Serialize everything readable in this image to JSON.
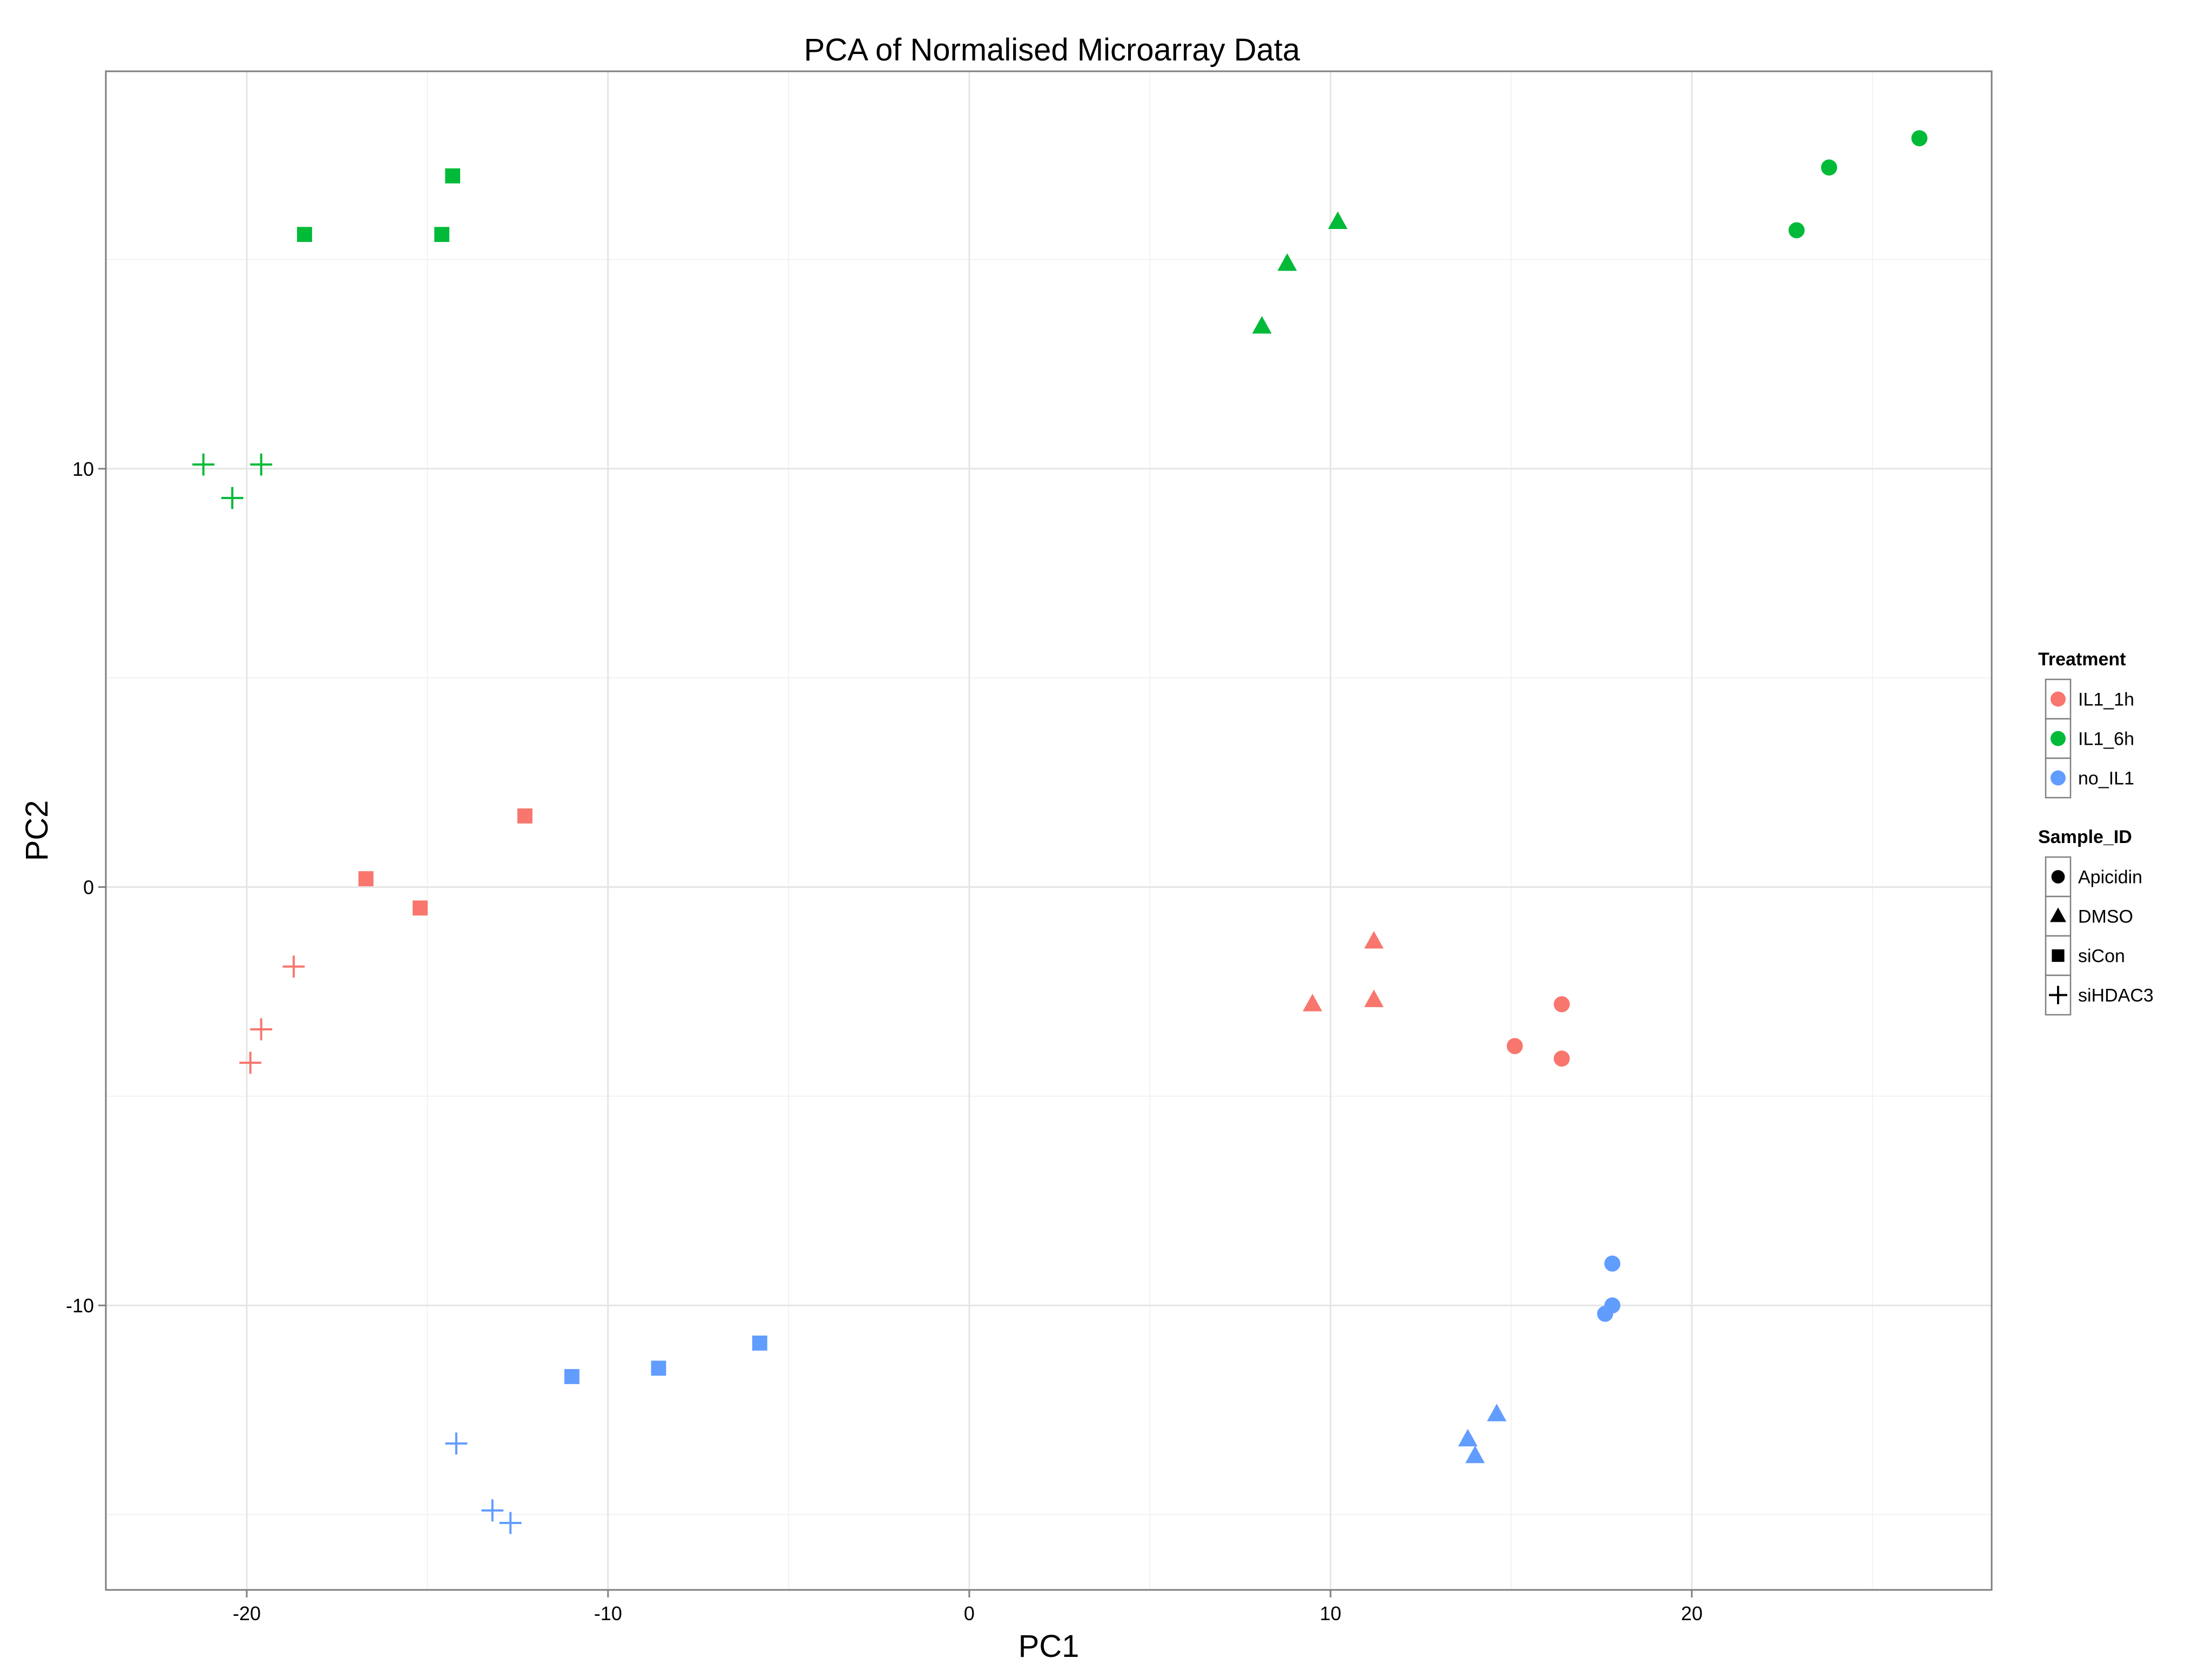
{
  "chart_data": {
    "type": "scatter",
    "title": "PCA of Normalised Microarray Data",
    "xlabel": "PC1",
    "ylabel": "PC2",
    "xlim": [
      -23.9,
      28.3
    ],
    "ylim": [
      -16.8,
      19.5
    ],
    "x_ticks": [
      -20,
      -10,
      0,
      10,
      20
    ],
    "x_tick_labels": [
      "-20",
      "-10",
      "0",
      "10",
      "20"
    ],
    "y_ticks": [
      -10,
      0,
      10
    ],
    "y_tick_labels": [
      "-10",
      "0",
      "10"
    ],
    "grid": true,
    "legend_placement": "right",
    "color_legend": {
      "title": "Treatment",
      "entries": [
        {
          "label": "IL1_1h",
          "color": "#F8766D"
        },
        {
          "label": "IL1_6h",
          "color": "#00BA38"
        },
        {
          "label": "no_IL1",
          "color": "#619CFF"
        }
      ]
    },
    "shape_legend": {
      "title": "Sample_ID",
      "entries": [
        {
          "label": "Apicidin",
          "shape": "circle"
        },
        {
          "label": "DMSO",
          "shape": "triangle"
        },
        {
          "label": "siCon",
          "shape": "square"
        },
        {
          "label": "siHDAC3",
          "shape": "plus"
        }
      ]
    },
    "points": [
      {
        "x": 22.9,
        "y": 15.7,
        "treatment": "IL1_6h",
        "sample": "Apicidin"
      },
      {
        "x": 23.8,
        "y": 17.2,
        "treatment": "IL1_6h",
        "sample": "Apicidin"
      },
      {
        "x": 26.3,
        "y": 17.9,
        "treatment": "IL1_6h",
        "sample": "Apicidin"
      },
      {
        "x": 8.1,
        "y": 13.4,
        "treatment": "IL1_6h",
        "sample": "DMSO"
      },
      {
        "x": 8.8,
        "y": 14.9,
        "treatment": "IL1_6h",
        "sample": "DMSO"
      },
      {
        "x": 10.2,
        "y": 15.9,
        "treatment": "IL1_6h",
        "sample": "DMSO"
      },
      {
        "x": -18.4,
        "y": 15.6,
        "treatment": "IL1_6h",
        "sample": "siCon"
      },
      {
        "x": -14.6,
        "y": 15.6,
        "treatment": "IL1_6h",
        "sample": "siCon"
      },
      {
        "x": -14.3,
        "y": 17.0,
        "treatment": "IL1_6h",
        "sample": "siCon"
      },
      {
        "x": -21.2,
        "y": 10.1,
        "treatment": "IL1_6h",
        "sample": "siHDAC3"
      },
      {
        "x": -19.6,
        "y": 10.1,
        "treatment": "IL1_6h",
        "sample": "siHDAC3"
      },
      {
        "x": -20.4,
        "y": 9.3,
        "treatment": "IL1_6h",
        "sample": "siHDAC3"
      },
      {
        "x": 16.4,
        "y": -2.8,
        "treatment": "IL1_1h",
        "sample": "Apicidin"
      },
      {
        "x": 15.1,
        "y": -3.8,
        "treatment": "IL1_1h",
        "sample": "Apicidin"
      },
      {
        "x": 16.4,
        "y": -4.1,
        "treatment": "IL1_1h",
        "sample": "Apicidin"
      },
      {
        "x": 11.2,
        "y": -1.3,
        "treatment": "IL1_1h",
        "sample": "DMSO"
      },
      {
        "x": 9.5,
        "y": -2.8,
        "treatment": "IL1_1h",
        "sample": "DMSO"
      },
      {
        "x": 11.2,
        "y": -2.7,
        "treatment": "IL1_1h",
        "sample": "DMSO"
      },
      {
        "x": -12.3,
        "y": 1.7,
        "treatment": "IL1_1h",
        "sample": "siCon"
      },
      {
        "x": -16.7,
        "y": 0.2,
        "treatment": "IL1_1h",
        "sample": "siCon"
      },
      {
        "x": -15.2,
        "y": -0.5,
        "treatment": "IL1_1h",
        "sample": "siCon"
      },
      {
        "x": -18.7,
        "y": -1.9,
        "treatment": "IL1_1h",
        "sample": "siHDAC3"
      },
      {
        "x": -19.6,
        "y": -3.4,
        "treatment": "IL1_1h",
        "sample": "siHDAC3"
      },
      {
        "x": -19.9,
        "y": -4.2,
        "treatment": "IL1_1h",
        "sample": "siHDAC3"
      },
      {
        "x": 17.8,
        "y": -9.0,
        "treatment": "no_IL1",
        "sample": "Apicidin"
      },
      {
        "x": 17.8,
        "y": -10.0,
        "treatment": "no_IL1",
        "sample": "Apicidin"
      },
      {
        "x": 17.6,
        "y": -10.2,
        "treatment": "no_IL1",
        "sample": "Apicidin"
      },
      {
        "x": 14.6,
        "y": -12.6,
        "treatment": "no_IL1",
        "sample": "DMSO"
      },
      {
        "x": 13.8,
        "y": -13.2,
        "treatment": "no_IL1",
        "sample": "DMSO"
      },
      {
        "x": 14.0,
        "y": -13.6,
        "treatment": "no_IL1",
        "sample": "DMSO"
      },
      {
        "x": -5.8,
        "y": -10.9,
        "treatment": "no_IL1",
        "sample": "siCon"
      },
      {
        "x": -8.6,
        "y": -11.5,
        "treatment": "no_IL1",
        "sample": "siCon"
      },
      {
        "x": -11.0,
        "y": -11.7,
        "treatment": "no_IL1",
        "sample": "siCon"
      },
      {
        "x": -14.2,
        "y": -13.3,
        "treatment": "no_IL1",
        "sample": "siHDAC3"
      },
      {
        "x": -13.2,
        "y": -14.9,
        "treatment": "no_IL1",
        "sample": "siHDAC3"
      },
      {
        "x": -12.7,
        "y": -15.2,
        "treatment": "no_IL1",
        "sample": "siHDAC3"
      }
    ]
  }
}
